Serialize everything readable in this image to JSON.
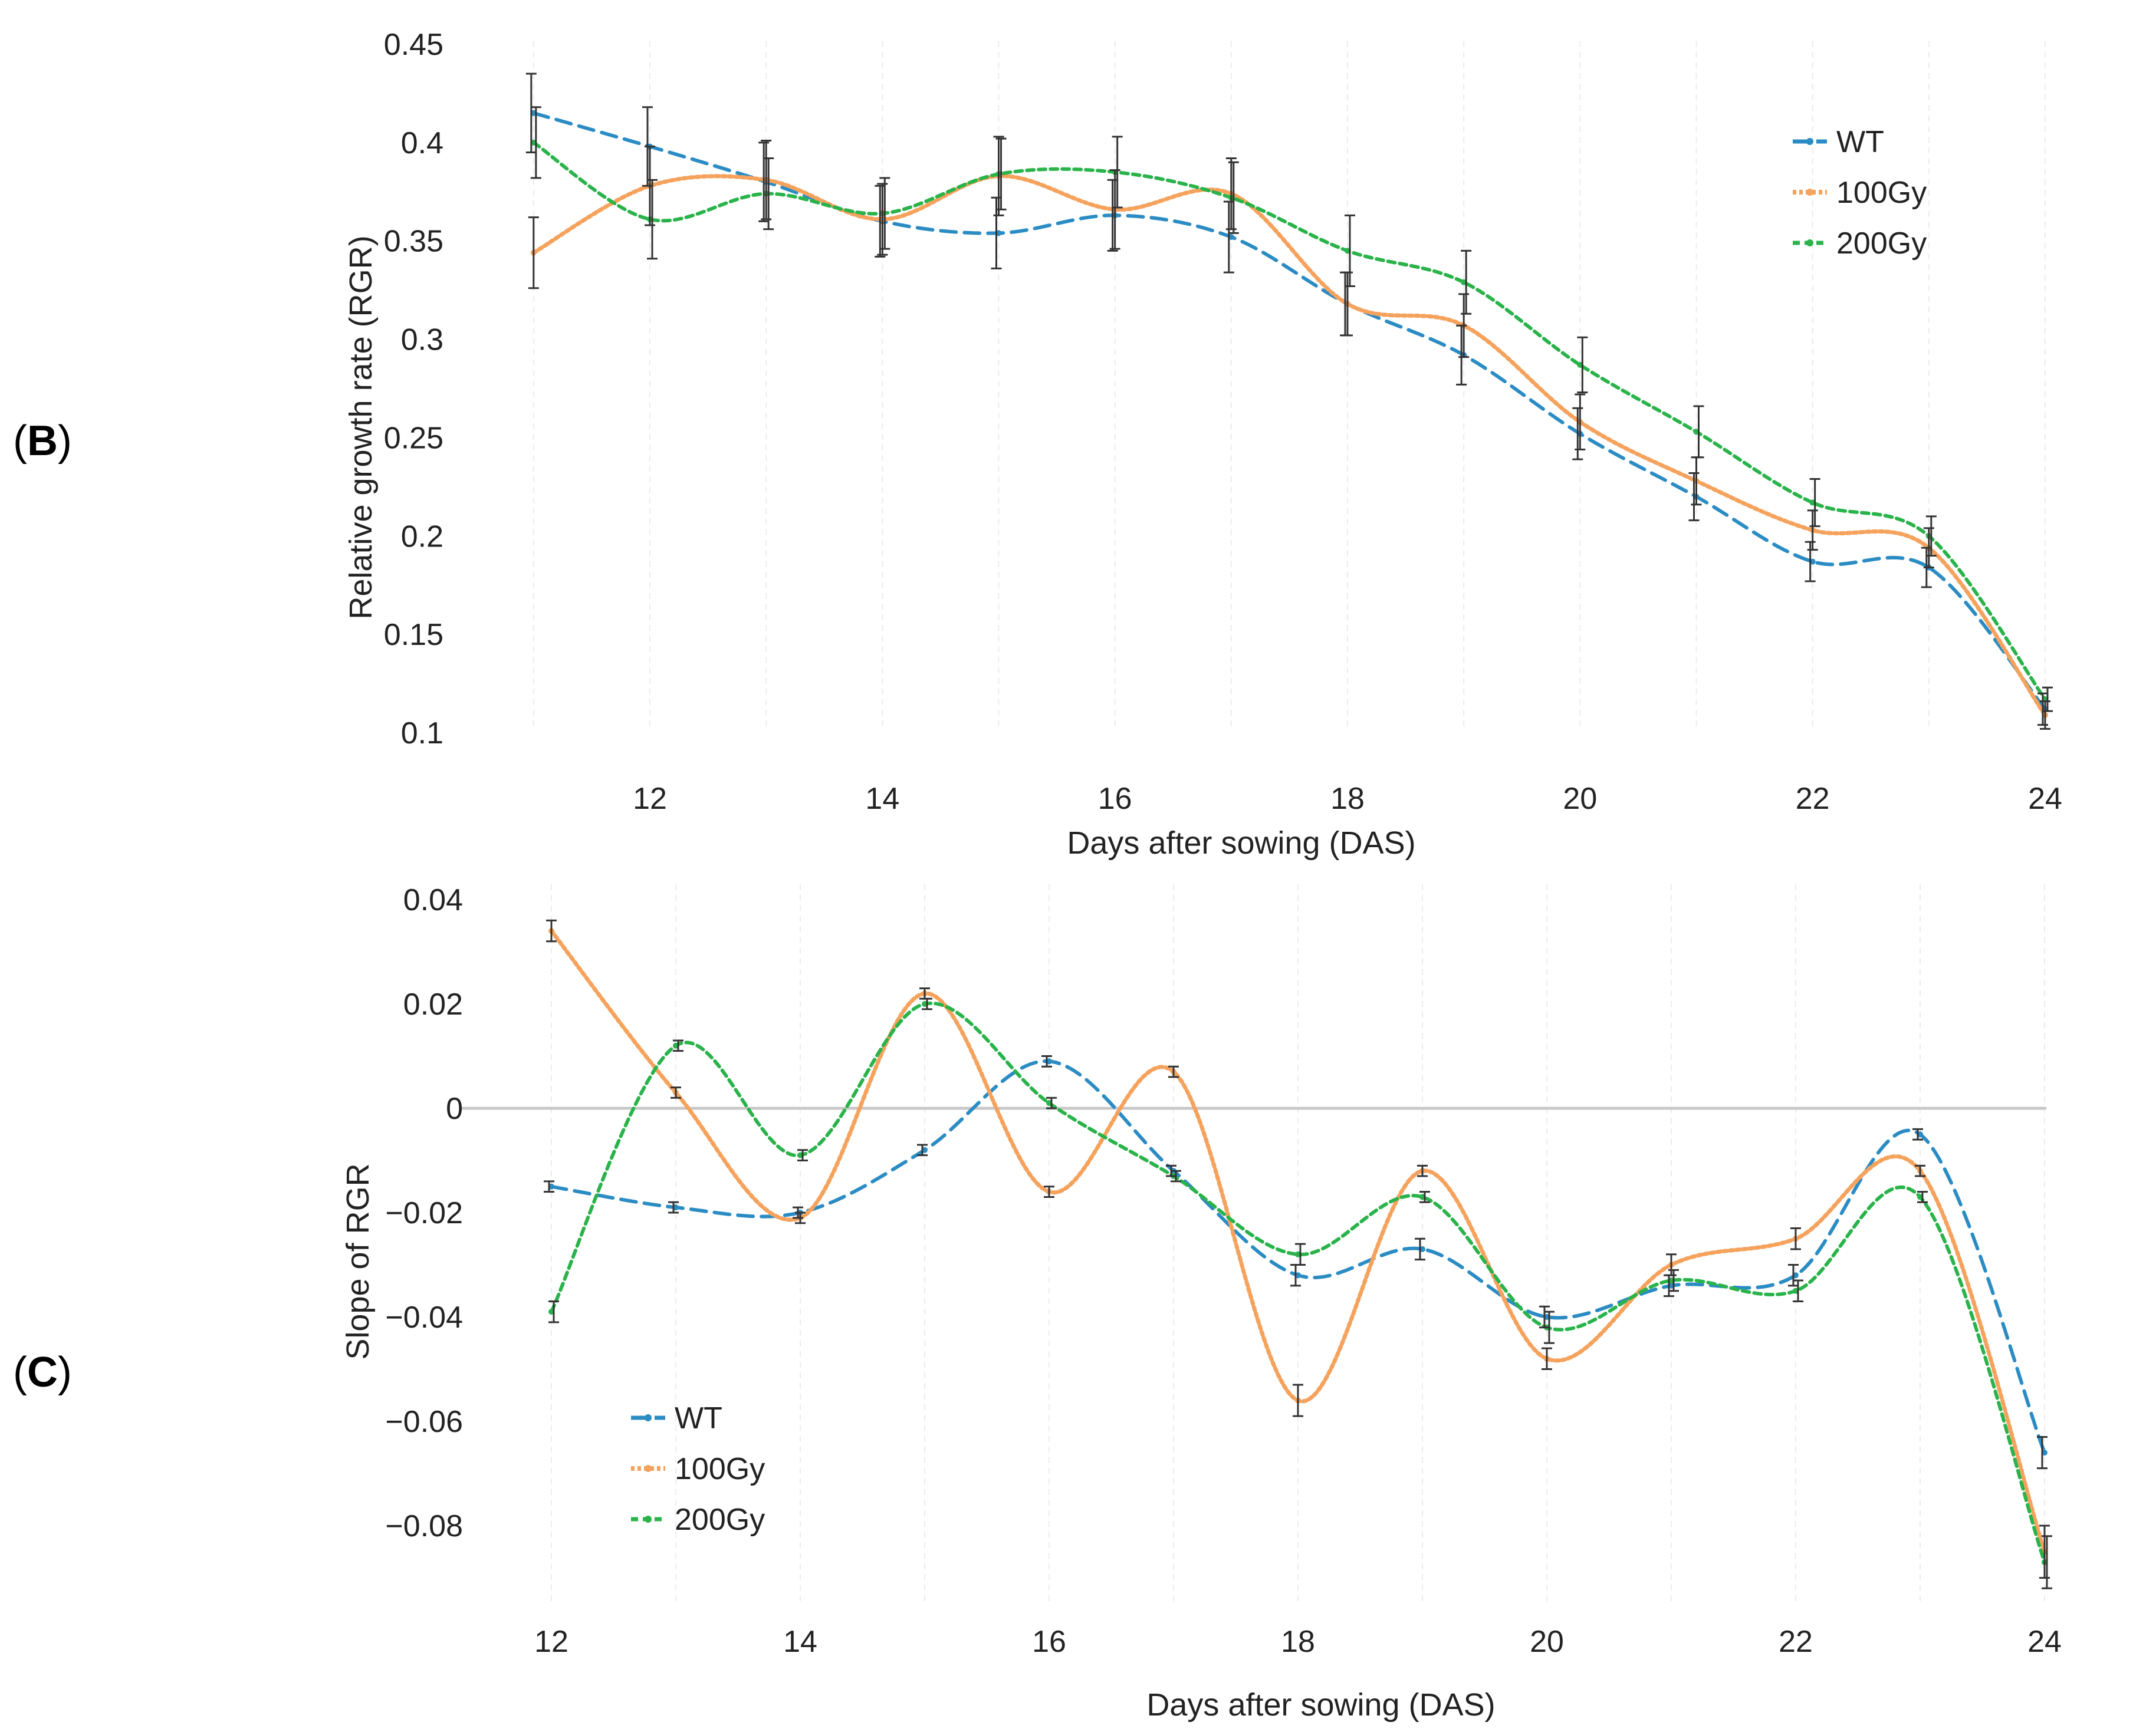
{
  "chart_data": [
    {
      "panel": "B",
      "type": "line",
      "xlabel": "Days after sowing (DAS)",
      "ylabel": "Relative growth rate (RGR)",
      "xlim": [
        11,
        24
      ],
      "ylim": [
        0.1,
        0.45
      ],
      "xticks": [
        12,
        14,
        16,
        18,
        20,
        22,
        24
      ],
      "yticks": [
        0.1,
        0.15,
        0.2,
        0.25,
        0.3,
        0.35,
        0.4,
        0.45
      ],
      "ytick_labels": [
        "0.1",
        "0.15",
        "0.2",
        "0.25",
        "0.3",
        "0.35",
        "0.4",
        "0.45"
      ],
      "grid": "vertical",
      "legend_position": "top-right",
      "x": [
        11,
        12,
        13,
        14,
        15,
        16,
        17,
        18,
        19,
        20,
        21,
        22,
        23,
        24
      ],
      "series": [
        {
          "name": "WT",
          "color": "#2b8cc4",
          "dash": "long",
          "values": [
            0.415,
            0.398,
            0.38,
            0.36,
            0.354,
            0.363,
            0.352,
            0.318,
            0.292,
            0.252,
            0.22,
            0.187,
            0.184,
            0.112
          ],
          "errors": [
            0.02,
            0.02,
            0.02,
            0.018,
            0.018,
            0.018,
            0.018,
            0.016,
            0.015,
            0.013,
            0.012,
            0.01,
            0.01,
            0.008
          ]
        },
        {
          "name": "100Gy",
          "color": "#f5a25d",
          "dash": "dotted",
          "values": [
            0.344,
            0.378,
            0.381,
            0.361,
            0.383,
            0.366,
            0.374,
            0.318,
            0.307,
            0.258,
            0.228,
            0.203,
            0.194,
            0.109
          ],
          "errors": [
            0.018,
            0.02,
            0.02,
            0.018,
            0.02,
            0.02,
            0.018,
            0.016,
            0.016,
            0.014,
            0.012,
            0.01,
            0.01,
            0.007
          ]
        },
        {
          "name": "200Gy",
          "color": "#2ab34a",
          "dash": "short",
          "values": [
            0.4,
            0.361,
            0.374,
            0.364,
            0.384,
            0.385,
            0.372,
            0.345,
            0.329,
            0.287,
            0.253,
            0.217,
            0.2,
            0.117
          ],
          "errors": [
            0.018,
            0.02,
            0.018,
            0.018,
            0.018,
            0.018,
            0.018,
            0.018,
            0.016,
            0.014,
            0.013,
            0.012,
            0.01,
            0.006
          ]
        }
      ]
    },
    {
      "panel": "C",
      "type": "line",
      "xlabel": "Days after sowing (DAS)",
      "ylabel": "Slope of RGR",
      "xlim": [
        12,
        24
      ],
      "ylim": [
        -0.09,
        0.04
      ],
      "xticks": [
        12,
        14,
        16,
        18,
        20,
        22,
        24
      ],
      "yticks": [
        -0.08,
        -0.06,
        -0.04,
        -0.02,
        0,
        0.02,
        0.04
      ],
      "ytick_labels": [
        "−0.08",
        "−0.06",
        "−0.04",
        "−0.02",
        "0",
        "0.02",
        "0.04"
      ],
      "grid": "vertical",
      "zero_line": true,
      "legend_position": "bottom-left",
      "x": [
        12,
        13,
        14,
        15,
        16,
        17,
        18,
        19,
        20,
        21,
        22,
        23,
        24
      ],
      "series": [
        {
          "name": "WT",
          "color": "#2b8cc4",
          "dash": "long",
          "values": [
            -0.015,
            -0.019,
            -0.02,
            -0.008,
            0.009,
            -0.012,
            -0.032,
            -0.027,
            -0.04,
            -0.034,
            -0.032,
            -0.005,
            -0.066
          ],
          "errors": [
            0.001,
            0.001,
            0.001,
            0.001,
            0.001,
            0.001,
            0.002,
            0.002,
            0.002,
            0.002,
            0.002,
            0.001,
            0.003
          ]
        },
        {
          "name": "100Gy",
          "color": "#f5a25d",
          "dash": "dotted",
          "values": [
            0.034,
            0.003,
            -0.021,
            0.022,
            -0.016,
            0.007,
            -0.056,
            -0.012,
            -0.048,
            -0.03,
            -0.025,
            -0.012,
            -0.085
          ],
          "errors": [
            0.002,
            0.001,
            0.001,
            0.001,
            0.001,
            0.001,
            0.003,
            0.001,
            0.002,
            0.002,
            0.002,
            0.001,
            0.005
          ]
        },
        {
          "name": "200Gy",
          "color": "#2ab34a",
          "dash": "short",
          "values": [
            -0.039,
            0.012,
            -0.009,
            0.02,
            0.001,
            -0.013,
            -0.028,
            -0.017,
            -0.042,
            -0.033,
            -0.035,
            -0.017,
            -0.087
          ],
          "errors": [
            0.002,
            0.001,
            0.001,
            0.001,
            0.001,
            0.001,
            0.002,
            0.001,
            0.003,
            0.002,
            0.002,
            0.001,
            0.005
          ]
        }
      ]
    }
  ],
  "panel_labels": {
    "B": {
      "open": "(",
      "letter": "B",
      "close": ")"
    },
    "C": {
      "open": "(",
      "letter": "C",
      "close": ")"
    }
  }
}
